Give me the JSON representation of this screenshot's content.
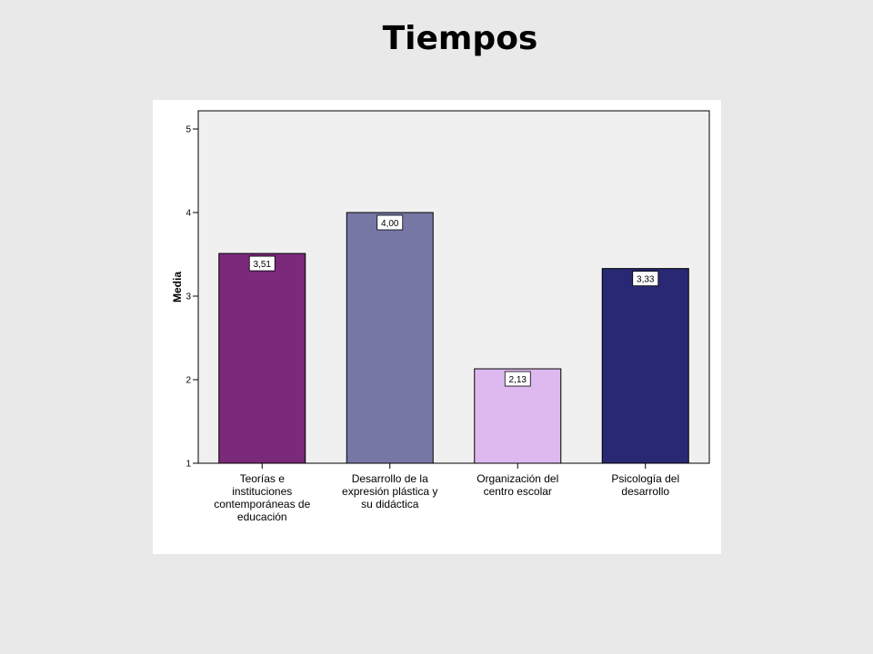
{
  "page": {
    "title": "Tiempos"
  },
  "chart_data": {
    "type": "bar",
    "title": "Tiempos",
    "ylabel": "Media",
    "xlabel": "",
    "ylim": [
      1,
      5
    ],
    "yticks": [
      "1",
      "2",
      "3",
      "4",
      "5"
    ],
    "grid": false,
    "categories": [
      [
        "Teorías e",
        "instituciones",
        "contemporáneas de",
        "educación"
      ],
      [
        "Desarrollo de la",
        "expresión plástica y",
        "su didáctica"
      ],
      [
        "Organización del",
        "centro escolar"
      ],
      [
        "Psicología del",
        "desarrollo"
      ]
    ],
    "values": [
      3.51,
      4.0,
      2.13,
      3.33
    ],
    "data_labels": [
      "3,51",
      "4,00",
      "2,13",
      "3,33"
    ],
    "colors": [
      "#7b297b",
      "#7777a6",
      "#ddb9ef",
      "#282873"
    ],
    "plot_background": "#f0f0f0"
  }
}
